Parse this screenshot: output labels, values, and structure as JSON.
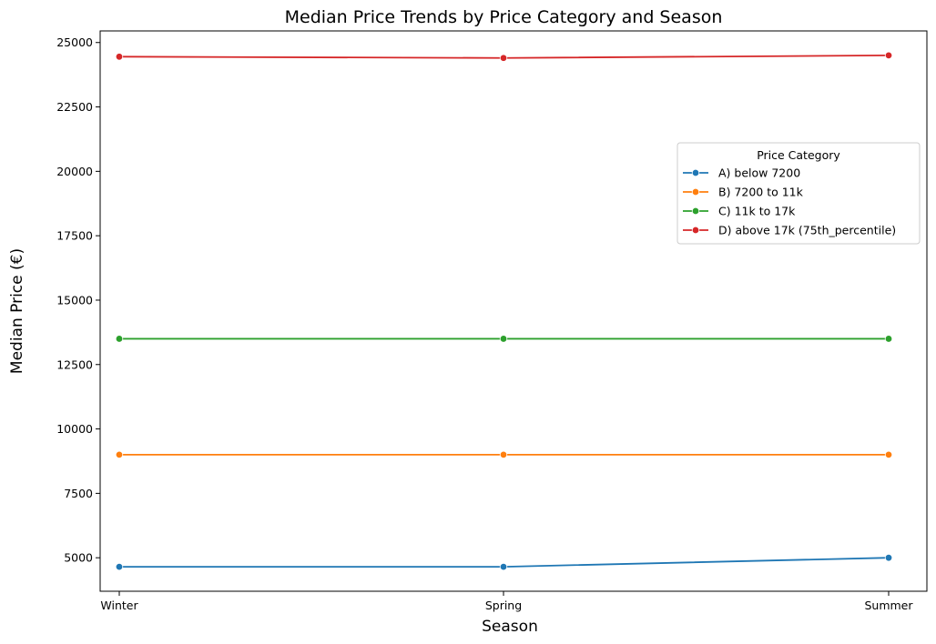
{
  "chart_data": {
    "type": "line",
    "title": "Median Price Trends by Price Category and Season",
    "xlabel": "Season",
    "ylabel": "Median Price (€)",
    "categories": [
      "Winter",
      "Spring",
      "Summer"
    ],
    "ylim": [
      3700,
      25450
    ],
    "yticks": [
      5000,
      7500,
      10000,
      12500,
      15000,
      17500,
      20000,
      22500,
      25000
    ],
    "grid": false,
    "legend": {
      "title": "Price Category",
      "placement": "right"
    },
    "series": [
      {
        "name": "A) below 7200",
        "color": "#1f77b4",
        "values": [
          4650,
          4650,
          5000
        ]
      },
      {
        "name": "B) 7200 to 11k",
        "color": "#ff7f0e",
        "values": [
          9000,
          9000,
          9000
        ]
      },
      {
        "name": "C) 11k to 17k",
        "color": "#2ca02c",
        "values": [
          13500,
          13500,
          13500
        ]
      },
      {
        "name": "D) above 17k (75th_percentile)",
        "color": "#d62728",
        "values": [
          24450,
          24400,
          24500
        ]
      }
    ]
  }
}
